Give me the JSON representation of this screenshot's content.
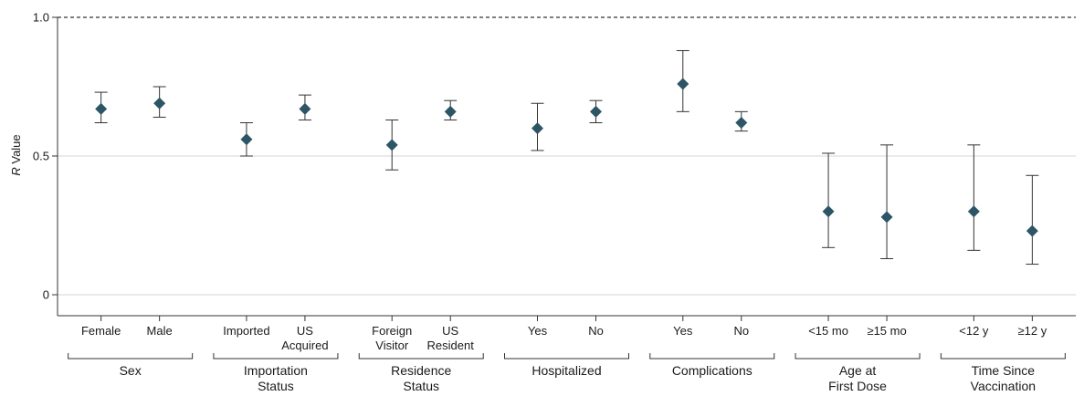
{
  "chart_data": {
    "type": "scatter",
    "ylabel_italic": "R",
    "ylabel_rest": " Value",
    "ylim": [
      0,
      1.0
    ],
    "y_ticks": [
      {
        "value": 0,
        "label": "0"
      },
      {
        "value": 0.5,
        "label": "0.5"
      },
      {
        "value": 1.0,
        "label": "1.0"
      }
    ],
    "reference_line": 1.0,
    "grid": "horizontal",
    "marker_color": "#2d5566",
    "groups": [
      {
        "label": [
          "Sex"
        ],
        "points": [
          {
            "label": [
              "Female"
            ],
            "estimate": 0.67,
            "lower": 0.62,
            "upper": 0.73
          },
          {
            "label": [
              "Male"
            ],
            "estimate": 0.69,
            "lower": 0.64,
            "upper": 0.75
          }
        ]
      },
      {
        "label": [
          "Importation",
          "Status"
        ],
        "points": [
          {
            "label": [
              "Imported"
            ],
            "estimate": 0.56,
            "lower": 0.5,
            "upper": 0.62
          },
          {
            "label": [
              "US",
              "Acquired"
            ],
            "estimate": 0.67,
            "lower": 0.63,
            "upper": 0.72
          }
        ]
      },
      {
        "label": [
          "Residence",
          "Status"
        ],
        "points": [
          {
            "label": [
              "Foreign",
              "Visitor"
            ],
            "estimate": 0.54,
            "lower": 0.45,
            "upper": 0.63
          },
          {
            "label": [
              "US",
              "Resident"
            ],
            "estimate": 0.66,
            "lower": 0.63,
            "upper": 0.7
          }
        ]
      },
      {
        "label": [
          "Hospitalized"
        ],
        "points": [
          {
            "label": [
              "Yes"
            ],
            "estimate": 0.6,
            "lower": 0.52,
            "upper": 0.69
          },
          {
            "label": [
              "No"
            ],
            "estimate": 0.66,
            "lower": 0.62,
            "upper": 0.7
          }
        ]
      },
      {
        "label": [
          "Complications"
        ],
        "points": [
          {
            "label": [
              "Yes"
            ],
            "estimate": 0.76,
            "lower": 0.66,
            "upper": 0.88
          },
          {
            "label": [
              "No"
            ],
            "estimate": 0.62,
            "lower": 0.59,
            "upper": 0.66
          }
        ]
      },
      {
        "label": [
          "Age at",
          "First Dose"
        ],
        "points": [
          {
            "label": [
              "<15 mo"
            ],
            "estimate": 0.3,
            "lower": 0.17,
            "upper": 0.51
          },
          {
            "label": [
              "≥15 mo"
            ],
            "estimate": 0.28,
            "lower": 0.13,
            "upper": 0.54
          }
        ]
      },
      {
        "label": [
          "Time Since",
          "Vaccination"
        ],
        "points": [
          {
            "label": [
              "<12 y"
            ],
            "estimate": 0.3,
            "lower": 0.16,
            "upper": 0.54
          },
          {
            "label": [
              "≥12 y"
            ],
            "estimate": 0.23,
            "lower": 0.11,
            "upper": 0.43
          }
        ]
      }
    ]
  }
}
